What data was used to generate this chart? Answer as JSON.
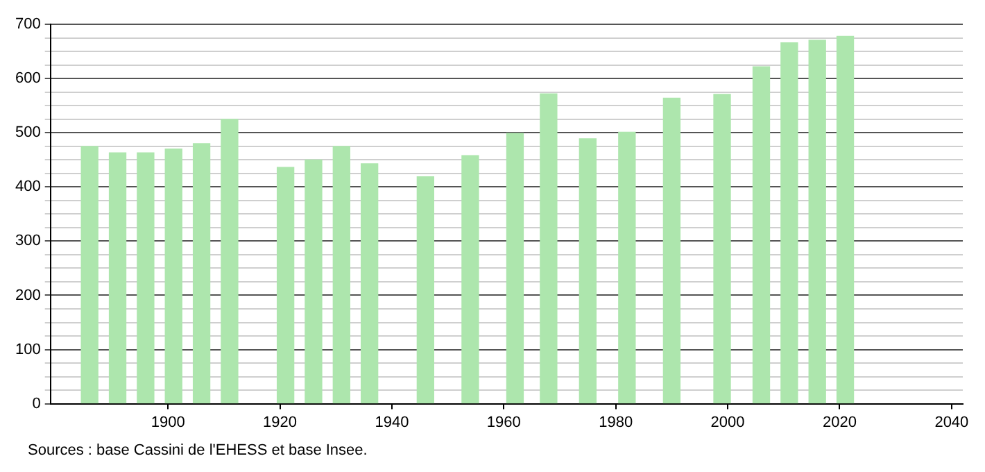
{
  "chart_data": {
    "type": "bar",
    "x": [
      1886,
      1891,
      1896,
      1901,
      1906,
      1911,
      1921,
      1926,
      1931,
      1936,
      1946,
      1954,
      1962,
      1968,
      1975,
      1982,
      1990,
      1999,
      2006,
      2011,
      2016,
      2021
    ],
    "values": [
      475,
      463,
      463,
      470,
      480,
      525,
      436,
      450,
      475,
      443,
      419,
      458,
      499,
      572,
      489,
      501,
      564,
      571,
      622,
      666,
      671,
      678
    ],
    "color": "#ade6ad",
    "xlim": [
      1879,
      2042
    ],
    "xticks": [
      1900,
      1920,
      1940,
      1960,
      1980,
      2000,
      2020,
      2040
    ],
    "ylim": [
      0,
      700
    ],
    "yticks": [
      0,
      {
        "value": 25,
        "label": null
      },
      {
        "value": 50,
        "label": null
      },
      {
        "value": 75,
        "label": null
      },
      100,
      {
        "value": 125,
        "label": null
      },
      {
        "value": 150,
        "label": null
      },
      {
        "value": 175,
        "label": null
      },
      200,
      {
        "value": 225,
        "label": null
      },
      {
        "value": 250,
        "label": null
      },
      {
        "value": 275,
        "label": null
      },
      300,
      {
        "value": 325,
        "label": null
      },
      {
        "value": 350,
        "label": null
      },
      {
        "value": 375,
        "label": null
      },
      400,
      {
        "value": 425,
        "label": null
      },
      {
        "value": 450,
        "label": null
      },
      {
        "value": 475,
        "label": null
      },
      500,
      {
        "value": 525,
        "label": null
      },
      {
        "value": 550,
        "label": null
      },
      {
        "value": 575,
        "label": null
      },
      600,
      {
        "value": 625,
        "label": null
      },
      {
        "value": 650,
        "label": null
      },
      {
        "value": 675,
        "label": null
      },
      700
    ],
    "grid": "y",
    "annotations": [
      "Sources : base Cassini de l'EHESS et base Insee."
    ]
  }
}
